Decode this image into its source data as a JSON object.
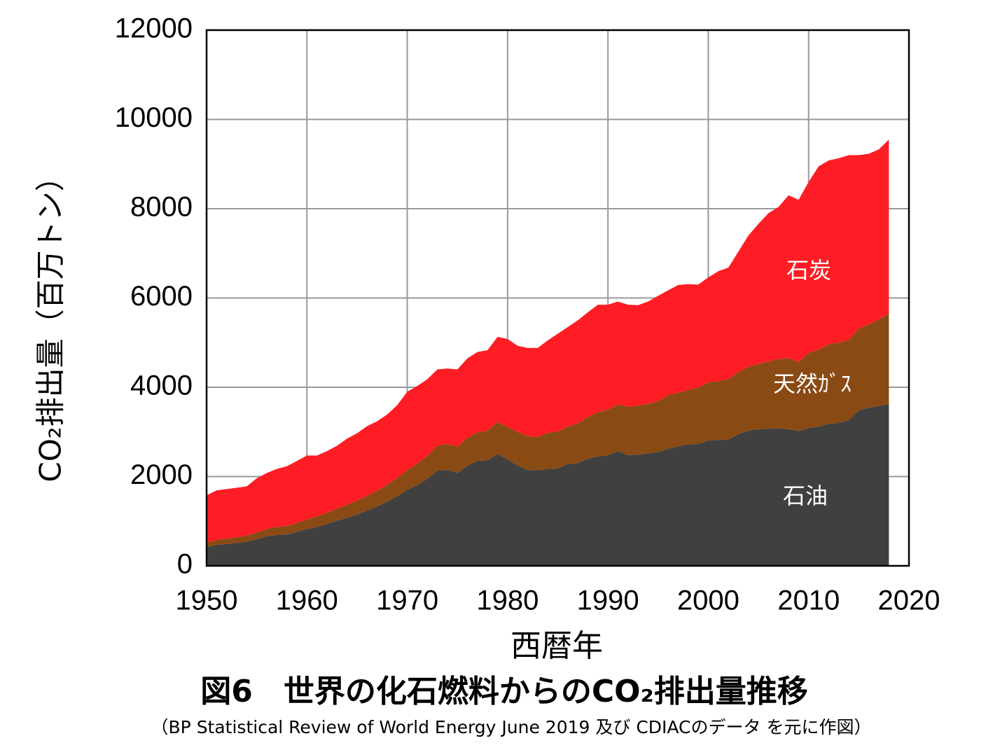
{
  "chart_data": {
    "type": "stacked-area",
    "title": "図6　世界の化石燃料からのCO₂排出量推移",
    "subtitle": "（BP Statistical Review of World Energy June 2019 及び CDIACのデータ を元に作図）",
    "x_label": "西暦年",
    "y_label": "CO₂排出量（百万トン）",
    "x": [
      1950,
      1951,
      1952,
      1953,
      1954,
      1955,
      1956,
      1957,
      1958,
      1959,
      1960,
      1961,
      1962,
      1963,
      1964,
      1965,
      1966,
      1967,
      1968,
      1969,
      1970,
      1971,
      1972,
      1973,
      1974,
      1975,
      1976,
      1977,
      1978,
      1979,
      1980,
      1981,
      1982,
      1983,
      1984,
      1985,
      1986,
      1987,
      1988,
      1989,
      1990,
      1991,
      1992,
      1993,
      1994,
      1995,
      1996,
      1997,
      1998,
      1999,
      2000,
      2001,
      2002,
      2003,
      2004,
      2005,
      2006,
      2007,
      2008,
      2009,
      2010,
      2011,
      2012,
      2013,
      2014,
      2015,
      2016,
      2017,
      2018
    ],
    "series": [
      {
        "name": "石油",
        "color": "#404040",
        "values": [
          420,
          470,
          490,
          510,
          540,
          600,
          660,
          690,
          700,
          760,
          820,
          870,
          940,
          1010,
          1080,
          1150,
          1240,
          1330,
          1440,
          1560,
          1700,
          1810,
          1950,
          2130,
          2150,
          2080,
          2250,
          2350,
          2370,
          2500,
          2380,
          2250,
          2150,
          2140,
          2170,
          2180,
          2280,
          2300,
          2400,
          2450,
          2480,
          2570,
          2480,
          2490,
          2520,
          2550,
          2620,
          2680,
          2720,
          2730,
          2810,
          2820,
          2830,
          2950,
          3030,
          3060,
          3070,
          3080,
          3060,
          3020,
          3090,
          3120,
          3180,
          3200,
          3260,
          3480,
          3540,
          3580,
          3620
        ]
      },
      {
        "name": "天然ｶﾞｽ",
        "color": "#8a4a14",
        "values": [
          100,
          110,
          120,
          130,
          140,
          150,
          165,
          180,
          190,
          200,
          220,
          235,
          250,
          270,
          290,
          310,
          330,
          350,
          380,
          410,
          450,
          480,
          510,
          560,
          580,
          590,
          620,
          640,
          660,
          720,
          730,
          750,
          750,
          750,
          810,
          830,
          840,
          890,
          940,
          990,
          1020,
          1050,
          1080,
          1100,
          1110,
          1140,
          1200,
          1200,
          1220,
          1260,
          1300,
          1320,
          1350,
          1390,
          1430,
          1460,
          1510,
          1550,
          1590,
          1550,
          1680,
          1720,
          1780,
          1800,
          1800,
          1830,
          1870,
          1940,
          2030
        ]
      },
      {
        "name": "石炭",
        "color": "#fe1d24",
        "values": [
          1060,
          1110,
          1110,
          1110,
          1100,
          1210,
          1255,
          1300,
          1340,
          1390,
          1430,
          1365,
          1380,
          1410,
          1480,
          1510,
          1560,
          1560,
          1570,
          1630,
          1750,
          1740,
          1720,
          1710,
          1690,
          1730,
          1780,
          1800,
          1800,
          1910,
          1970,
          1930,
          1980,
          1990,
          2070,
          2190,
          2230,
          2310,
          2340,
          2410,
          2350,
          2300,
          2290,
          2250,
          2290,
          2360,
          2350,
          2410,
          2370,
          2310,
          2350,
          2460,
          2500,
          2700,
          2940,
          3140,
          3320,
          3410,
          3650,
          3630,
          3830,
          4110,
          4120,
          4130,
          4140,
          3890,
          3820,
          3810,
          3900
        ]
      }
    ],
    "xlim": [
      1950,
      2020
    ],
    "xticks": [
      1950,
      1960,
      1970,
      1980,
      1990,
      2000,
      2010,
      2020
    ],
    "ylim": [
      0,
      12000
    ],
    "yticks": [
      0,
      2000,
      4000,
      6000,
      8000,
      10000,
      12000
    ],
    "grid": true
  }
}
